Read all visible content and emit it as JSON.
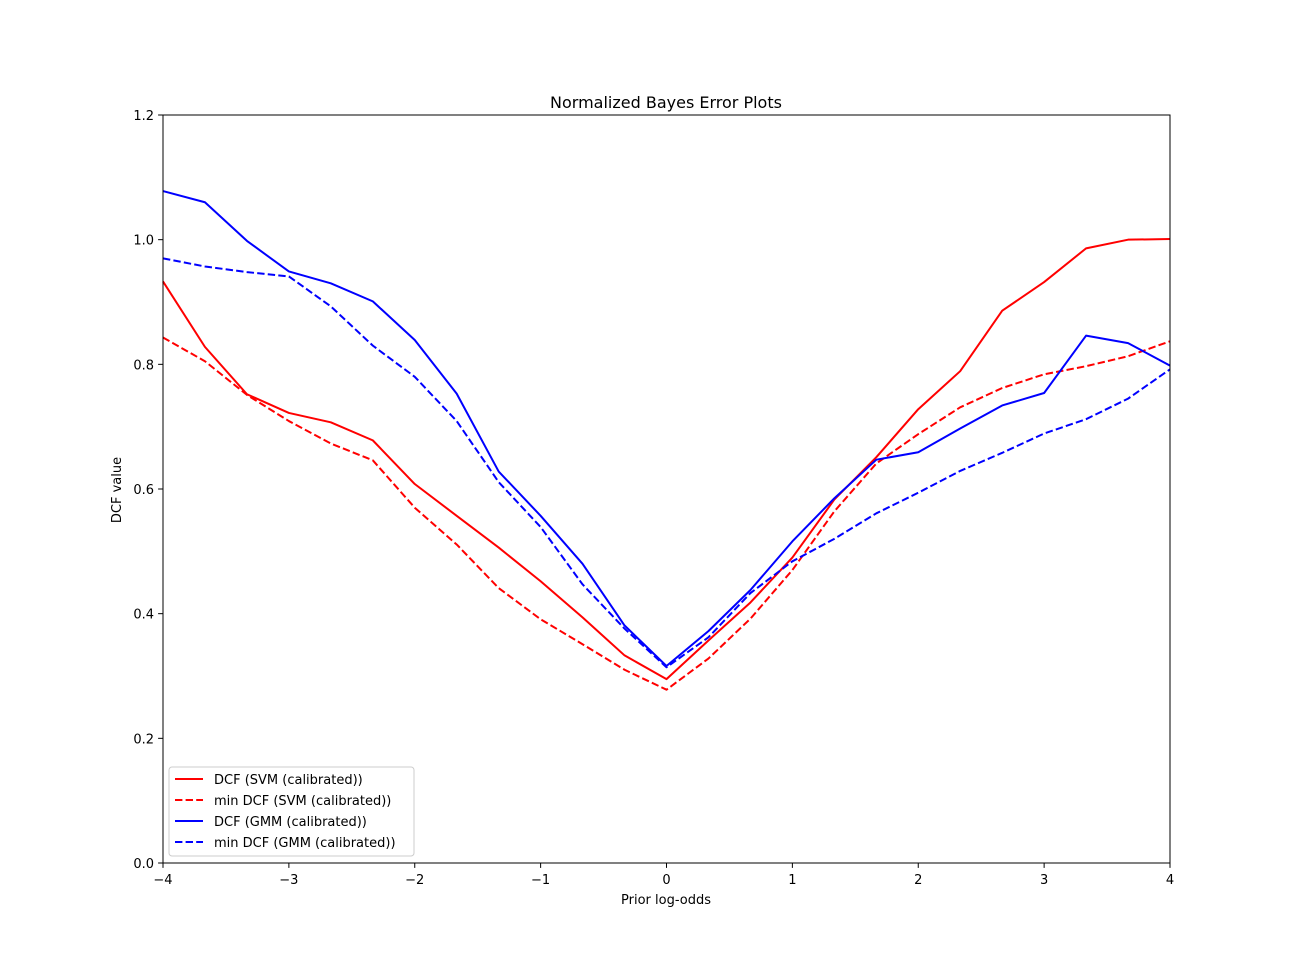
{
  "chart_data": {
    "type": "line",
    "title": "Normalized Bayes Error Plots",
    "xlabel": "Prior log-odds",
    "ylabel": "DCF value",
    "xlim": [
      -4,
      4
    ],
    "ylim": [
      0.0,
      1.2
    ],
    "xticks": [
      -4,
      -3,
      -2,
      -1,
      0,
      1,
      2,
      3,
      4
    ],
    "xtick_labels": [
      "−4",
      "−3",
      "−2",
      "−1",
      "0",
      "1",
      "2",
      "3",
      "4"
    ],
    "yticks": [
      0.0,
      0.2,
      0.4,
      0.6,
      0.8,
      1.0,
      1.2
    ],
    "ytick_labels": [
      "0.0",
      "0.2",
      "0.4",
      "0.6",
      "0.8",
      "1.0",
      "1.2"
    ],
    "grid": false,
    "legend_position": "lower-left",
    "x": [
      -4.0,
      -3.667,
      -3.333,
      -3.0,
      -2.667,
      -2.333,
      -2.0,
      -1.667,
      -1.333,
      -1.0,
      -0.667,
      -0.333,
      0.0,
      0.333,
      0.667,
      1.0,
      1.333,
      1.667,
      2.0,
      2.333,
      2.667,
      3.0,
      3.333,
      3.667,
      4.0
    ],
    "series": [
      {
        "name": "DCF (SVM (calibrated))",
        "color": "#ff0000",
        "dash": "solid",
        "values": [
          0.933,
          0.828,
          0.752,
          0.722,
          0.707,
          0.678,
          0.608,
          0.557,
          0.506,
          0.452,
          0.394,
          0.333,
          0.295,
          0.357,
          0.418,
          0.49,
          0.583,
          0.651,
          0.728,
          0.789,
          0.886,
          0.932,
          0.986,
          1.0,
          1.001
        ]
      },
      {
        "name": "min DCF (SVM (calibrated))",
        "color": "#ff0000",
        "dash": "dashed",
        "values": [
          0.843,
          0.805,
          0.751,
          0.709,
          0.673,
          0.646,
          0.57,
          0.511,
          0.441,
          0.391,
          0.351,
          0.31,
          0.278,
          0.328,
          0.392,
          0.47,
          0.564,
          0.641,
          0.688,
          0.731,
          0.762,
          0.784,
          0.797,
          0.813,
          0.837
        ]
      },
      {
        "name": "DCF (GMM (calibrated))",
        "color": "#0000ff",
        "dash": "solid",
        "values": [
          1.078,
          1.06,
          0.998,
          0.949,
          0.93,
          0.901,
          0.839,
          0.753,
          0.628,
          0.557,
          0.48,
          0.381,
          0.316,
          0.372,
          0.438,
          0.516,
          0.585,
          0.647,
          0.659,
          0.697,
          0.734,
          0.754,
          0.846,
          0.834,
          0.798
        ]
      },
      {
        "name": "min DCF (GMM (calibrated))",
        "color": "#0000ff",
        "dash": "dashed",
        "values": [
          0.97,
          0.957,
          0.948,
          0.941,
          0.893,
          0.83,
          0.78,
          0.709,
          0.611,
          0.539,
          0.447,
          0.376,
          0.314,
          0.362,
          0.433,
          0.484,
          0.52,
          0.561,
          0.594,
          0.629,
          0.658,
          0.689,
          0.712,
          0.745,
          0.792
        ]
      }
    ]
  }
}
